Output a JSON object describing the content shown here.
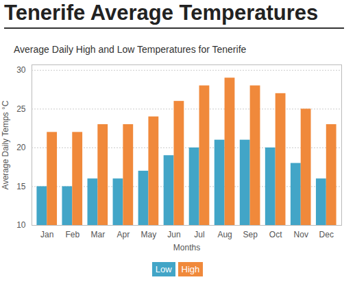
{
  "chart_data": {
    "type": "bar",
    "title": "Tenerife Average Temperatures",
    "subtitle": "Average Daily High and Low Temperatures for Tenerife",
    "x_label": "Months",
    "y_label": "Average Daily Temps °C",
    "categories": [
      "Jan",
      "Feb",
      "Mar",
      "Apr",
      "May",
      "Jun",
      "Jul",
      "Aug",
      "Sep",
      "Oct",
      "Nov",
      "Dec"
    ],
    "series": [
      {
        "name": "Low",
        "color": "#42a5c7",
        "values": [
          15,
          15,
          16,
          16,
          17,
          19,
          20,
          21,
          21,
          20,
          18,
          16
        ]
      },
      {
        "name": "High",
        "color": "#f0893b",
        "values": [
          22,
          22,
          23,
          23,
          24,
          26,
          28,
          29,
          28,
          27,
          25,
          23
        ]
      }
    ],
    "ylim": [
      10,
      30.7
    ],
    "yticks": [
      10,
      15,
      20,
      25,
      30
    ],
    "grid": true,
    "legend": "bottom"
  }
}
